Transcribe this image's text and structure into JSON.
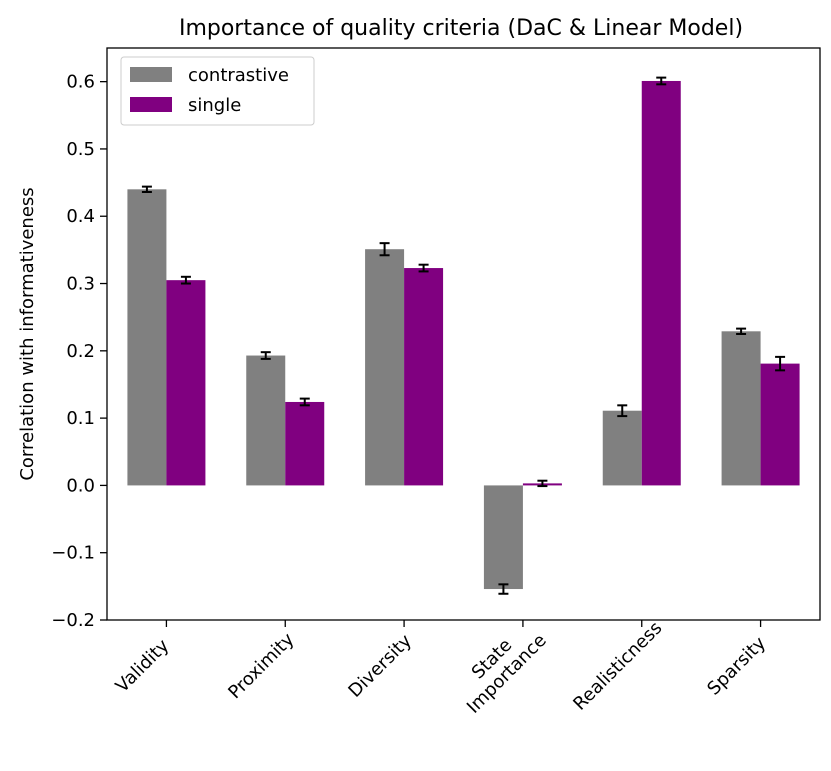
{
  "chart_data": {
    "type": "bar",
    "title": "Importance of quality criteria (DaC & Linear Model)",
    "xlabel": "",
    "ylabel": "Correlation with informativeness",
    "categories": [
      "Validity",
      "Proximity",
      "Diversity",
      "State Importance",
      "Realisticness",
      "Sparsity"
    ],
    "category_lines": [
      [
        "Validity"
      ],
      [
        "Proximity"
      ],
      [
        "Diversity"
      ],
      [
        "State",
        "Importance"
      ],
      [
        "Realisticness"
      ],
      [
        "Sparsity"
      ]
    ],
    "series": [
      {
        "name": "contrastive",
        "color": "#808080",
        "values": [
          0.44,
          0.193,
          0.351,
          -0.154,
          0.111,
          0.229
        ],
        "errors": [
          0.004,
          0.005,
          0.009,
          0.007,
          0.008,
          0.004
        ]
      },
      {
        "name": "single",
        "color": "#800080",
        "values": [
          0.305,
          0.124,
          0.323,
          0.003,
          0.601,
          0.181
        ],
        "errors": [
          0.005,
          0.005,
          0.005,
          0.004,
          0.005,
          0.01
        ]
      }
    ],
    "ylim": [
      -0.2,
      0.65
    ],
    "yticks": [
      -0.2,
      -0.1,
      0.0,
      0.1,
      0.2,
      0.3,
      0.4,
      0.5,
      0.6
    ],
    "ytick_labels": [
      "−0.2",
      "−0.1",
      "0.0",
      "0.1",
      "0.2",
      "0.3",
      "0.4",
      "0.5",
      "0.6"
    ],
    "grid": false,
    "legend_position": "top-left",
    "error_bar_color": "#000000"
  }
}
